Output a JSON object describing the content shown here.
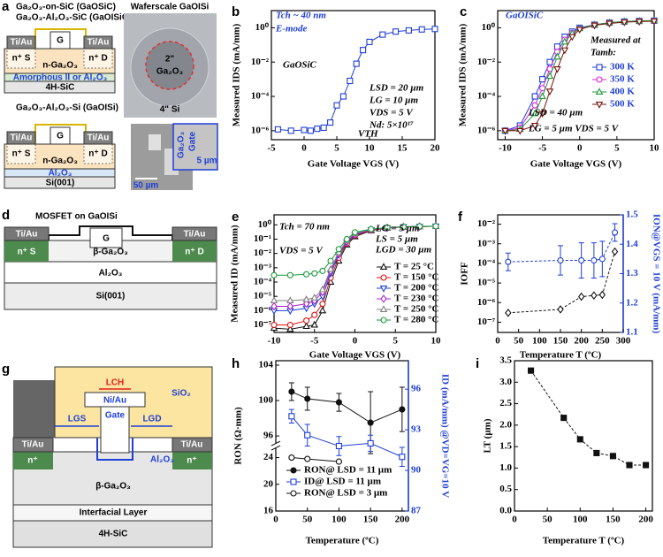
{
  "diagrams": {
    "a": {
      "label": "a",
      "gaosic": {
        "title": "Ga₂O₃-on-SiC (GaOSiC)",
        "title_2": "Ga₂O₃-Al₂O₃-SiC (GaOISiC)",
        "source_contact": "Ti/Au",
        "gate": "G",
        "drain_contact": "Ti/Au",
        "source_region": "n⁺ S",
        "channel": "n-Ga₂O₃",
        "drain_region": "n⁺ D",
        "interlayer": "Amorphous II or Al₂O₃",
        "substrate": "4H-SiC"
      },
      "gaoisi": {
        "title": "Ga₂O₃-Al₂O₃-Si (GaOISi)",
        "source_contact": "Ti/Au",
        "gate": "G",
        "drain_contact": "Ti/Au",
        "source_region": "n⁺ S",
        "channel": "n-Ga₂O₃",
        "drain_region": "n⁺ D",
        "interlayer": "Al₂O₃",
        "substrate": "Si(001)"
      },
      "wafer": {
        "title": "Waferscale GaOISi",
        "inner_size": "2\"",
        "film": "Ga₂O₃",
        "wafer_size": "4\" Si"
      },
      "sem": {
        "scale_large": "50 µm",
        "scale_small": "5 µm",
        "film": "Ga₂O₃",
        "gate": "Gate"
      }
    },
    "d": {
      "label": "d",
      "title": "MOSFET on GaOISi",
      "source_contact": "Ti/Au",
      "gate": "G",
      "drain_contact": "Ti/Au",
      "source_region": "n⁺ S",
      "drain_region": "n⁺ D",
      "channel": "β-Ga₂O₃",
      "insulator": "Al₂O₃",
      "substrate": "Si(001)"
    },
    "g": {
      "label": "g",
      "passivation": "SiO₂",
      "channel_length": "LCH",
      "gate_metal": "Ni/Au",
      "gate": "Gate",
      "gate_source": "LGS",
      "gate_drain": "LGD",
      "source_contact": "Ti/Au",
      "drain_contact": "Ti/Au",
      "source_region": "n⁺",
      "drain_region": "n⁺",
      "recess_oxide": "Al₂O₃",
      "channel": "β-Ga₂O₃",
      "interfacial": "Interfacial Layer",
      "substrate": "4H-SiC"
    }
  },
  "chart_data": [
    {
      "panel_label": "b",
      "type": "line",
      "log_y": true,
      "line_style": "solid",
      "x_label": "Gate Voltage VGS (V)",
      "y_label": "Measured IDS (mA/mm)",
      "xlim": [
        -5,
        20
      ],
      "xticks": [
        -5,
        0,
        5,
        10,
        15,
        20
      ],
      "ylim": [
        3e-07,
        10
      ],
      "yticks": [
        {
          "value": 1,
          "label": "10⁰"
        },
        {
          "value": 0.01,
          "label": "10⁻²"
        },
        {
          "value": 0.0001,
          "label": "10⁻⁴"
        },
        {
          "value": 1e-06,
          "label": "10⁻⁶"
        }
      ],
      "x": [
        -4,
        -2,
        0,
        1,
        2,
        3,
        4,
        5,
        6,
        7,
        8,
        9,
        10,
        12,
        14,
        16,
        18,
        20
      ],
      "series": [
        {
          "color": "#1f3fd8",
          "marker": "square",
          "filled": false,
          "values": [
            1.2e-06,
            1e-06,
            1.1e-06,
            1e-06,
            1.3e-06,
            1.5e-06,
            3e-06,
            3e-05,
            0.0001,
            0.0008,
            0.008,
            0.05,
            0.15,
            0.4,
            0.6,
            0.7,
            0.8,
            0.85
          ]
        }
      ],
      "annotations": [
        "Tch ~ 40 nm",
        "E-mode",
        "GaOSiC",
        "LSD = 20 µm",
        "LG = 10 µm",
        "VDS = 5 V",
        "Nd: 5×10¹⁷",
        "VTH"
      ]
    },
    {
      "panel_label": "c",
      "type": "line",
      "log_y": true,
      "line_style": "solid",
      "x_label": "Gate Voltage VGS (V)",
      "y_label": "Measured IDS (mA/mm)",
      "xlim": [
        -11,
        10
      ],
      "xticks": [
        -10,
        -5,
        0,
        5,
        10
      ],
      "ylim": [
        3e-07,
        10
      ],
      "yticks": [
        {
          "value": 1,
          "label": "10⁰"
        },
        {
          "value": 0.01,
          "label": "10⁻²"
        },
        {
          "value": 0.0001,
          "label": "10⁻⁴"
        },
        {
          "value": 1e-06,
          "label": "10⁻⁶"
        }
      ],
      "x": [
        -10,
        -8,
        -6,
        -5,
        -4,
        -3,
        -2,
        -1,
        0,
        2,
        4,
        6,
        8,
        10
      ],
      "series": [
        {
          "name": "300 K",
          "color": "#1f3fd8",
          "marker": "square",
          "filled": false,
          "values": [
            1e-06,
            2e-06,
            0.0001,
            0.001,
            0.01,
            0.08,
            0.3,
            0.6,
            1,
            1.5,
            2,
            2.3,
            2.5,
            2.6
          ]
        },
        {
          "name": "350 K",
          "color": "#e020e0",
          "marker": "circle",
          "filled": false,
          "values": [
            1e-06,
            1.5e-06,
            3e-05,
            0.0003,
            0.004,
            0.04,
            0.2,
            0.5,
            0.9,
            1.5,
            2,
            2.3,
            2.5,
            2.6
          ]
        },
        {
          "name": "400 K",
          "color": "#1a9a3a",
          "marker": "triangle",
          "filled": false,
          "values": [
            1e-06,
            1.2e-06,
            1e-05,
            0.0001,
            0.0015,
            0.02,
            0.15,
            0.45,
            0.9,
            1.5,
            2,
            2.3,
            2.5,
            2.6
          ]
        },
        {
          "name": "500 K",
          "color": "#7a1010",
          "marker": "triangle-down",
          "filled": false,
          "values": [
            1e-06,
            1e-06,
            2e-06,
            1e-05,
            0.0002,
            0.004,
            0.05,
            0.3,
            0.8,
            1.4,
            1.8,
            2.1,
            2.3,
            2.4
          ]
        }
      ],
      "annotations": [
        "GaOISiC",
        "Measured at",
        "Tamb:",
        "LSD = 40 µm",
        "LG = 5 µm  VDS = 5 V"
      ]
    },
    {
      "panel_label": "e",
      "type": "line",
      "log_y": true,
      "line_style": "solid",
      "x_label": "Gate Voltage VGS (V)",
      "y_label": "Measured ID (mA/mm)",
      "xlim": [
        -10,
        10
      ],
      "xticks": [
        -10,
        -5,
        0,
        5,
        10
      ],
      "ylim": [
        3e-08,
        5
      ],
      "yticks": [
        {
          "value": 1,
          "label": "10⁰"
        },
        {
          "value": 0.1,
          "label": "10⁻¹"
        },
        {
          "value": 0.01,
          "label": "10⁻²"
        },
        {
          "value": 0.001,
          "label": "10⁻³"
        },
        {
          "value": 0.0001,
          "label": "10⁻⁴"
        },
        {
          "value": 1e-05,
          "label": "10⁻⁵"
        },
        {
          "value": 1e-06,
          "label": "10⁻⁶"
        },
        {
          "value": 1e-07,
          "label": "10⁻⁷"
        }
      ],
      "x": [
        -10,
        -8,
        -6,
        -5,
        -4,
        -3,
        -2,
        -1,
        0,
        2,
        4,
        6,
        8,
        10
      ],
      "series": [
        {
          "name": "T = 25 °C",
          "color": "#111111",
          "marker": "triangle",
          "filled": false,
          "values": [
            6e-08,
            5e-08,
            8e-08,
            1e-07,
            1e-06,
            0.0001,
            0.003,
            0.04,
            0.15,
            0.4,
            0.6,
            0.7,
            0.75,
            0.8
          ]
        },
        {
          "name": "T = 150 °C",
          "color": "#e01010",
          "marker": "circle",
          "filled": false,
          "values": [
            1e-07,
            1e-07,
            2e-07,
            5e-07,
            3e-06,
            0.0002,
            0.005,
            0.05,
            0.18,
            0.42,
            0.6,
            0.7,
            0.75,
            0.8
          ]
        },
        {
          "name": "T = 200 °C",
          "color": "#1f3fd8",
          "marker": "triangle-down",
          "filled": false,
          "values": [
            1e-06,
            1e-06,
            1.5e-06,
            3e-06,
            1e-05,
            0.0004,
            0.008,
            0.06,
            0.2,
            0.45,
            0.62,
            0.72,
            0.77,
            0.8
          ]
        },
        {
          "name": "T = 230 °C",
          "color": "#b020d0",
          "marker": "diamond",
          "filled": false,
          "values": [
            2e-06,
            2e-06,
            3e-06,
            5e-06,
            2e-05,
            0.0006,
            0.01,
            0.07,
            0.22,
            0.45,
            0.62,
            0.72,
            0.77,
            0.8
          ]
        },
        {
          "name": "T = 250 °C",
          "color": "#808080",
          "marker": "triangle",
          "filled": false,
          "values": [
            5e-06,
            5e-06,
            6e-06,
            8e-06,
            3e-05,
            0.0008,
            0.012,
            0.08,
            0.25,
            0.48,
            0.63,
            0.72,
            0.77,
            0.8
          ]
        },
        {
          "name": "T = 280 °C",
          "color": "#1a9a3a",
          "marker": "circle",
          "filled": false,
          "values": [
            0.0003,
            0.0003,
            0.00035,
            0.0004,
            0.0006,
            0.003,
            0.02,
            0.1,
            0.3,
            0.5,
            0.65,
            0.73,
            0.78,
            0.8
          ]
        }
      ],
      "annotations": [
        "Tch = 70 nm",
        "VDS = 5 V",
        "LG = 5 µm",
        "LS = 5 µm",
        "LGD = 30 µm"
      ]
    },
    {
      "panel_label": "f",
      "type": "line",
      "log_y": true,
      "line_style": "dashed",
      "x_label": "Temperature T (ºC)",
      "y_label": "IOFF",
      "y2_label": "ION@VGS = 10 V (mA/mm)",
      "y2_color": "#1f3fd8",
      "xlim": [
        0,
        300
      ],
      "xticks": [
        0,
        50,
        100,
        150,
        200,
        250,
        300
      ],
      "ylim": [
        3e-08,
        0.03
      ],
      "yticks": [
        {
          "value": 0.01,
          "label": "10⁻²"
        },
        {
          "value": 0.001,
          "label": "10⁻³"
        },
        {
          "value": 0.0001,
          "label": "10⁻⁴"
        },
        {
          "value": 1e-05,
          "label": "10⁻⁵"
        },
        {
          "value": 1e-06,
          "label": "10⁻⁶"
        },
        {
          "value": 1e-07,
          "label": "10⁻⁷"
        }
      ],
      "y2lim": [
        1.1,
        1.5
      ],
      "y2ticks": [
        1.1,
        1.2,
        1.3,
        1.4,
        1.5
      ],
      "x": [
        25,
        150,
        200,
        230,
        250,
        280
      ],
      "series": [
        {
          "color": "#111111",
          "marker": "diamond",
          "filled": false,
          "values": [
            3e-07,
            4.5e-07,
            2e-06,
            2.3e-06,
            2.5e-06,
            0.0004
          ]
        },
        {
          "color": "#1f3fd8",
          "marker": "circle",
          "filled": false,
          "axis": "y2",
          "values": [
            1.34,
            1.345,
            1.345,
            1.345,
            1.35,
            1.44
          ],
          "errors": [
            0.03,
            0.05,
            0.06,
            0.06,
            0.06,
            0.03
          ]
        }
      ]
    },
    {
      "panel_label": "h",
      "type": "line",
      "line_style": "solid",
      "x_label": "Temperature (ºC)",
      "y_label": "RON (Ω·mm)",
      "y2_label": "ID (mA/mm) @VD=VG=10 V",
      "y2_color": "#1f3fd8",
      "xlim": [
        0,
        210
      ],
      "xticks": [
        0,
        50,
        100,
        150,
        200
      ],
      "ylim": [
        16,
        104.5
      ],
      "ybreak": [
        25,
        95.5
      ],
      "yticks": [
        16,
        20,
        24,
        96,
        100,
        104
      ],
      "y2lim": [
        87,
        98.1
      ],
      "y2ticks": [
        87,
        90,
        93,
        96
      ],
      "series": [
        {
          "name": "RON@ LSD = 11 µm",
          "color": "#111111",
          "marker": "circle",
          "filled": true,
          "x": [
            25,
            50,
            100,
            150,
            200
          ],
          "values": [
            101,
            100.2,
            99.8,
            97.5,
            99
          ],
          "errors": [
            1,
            1.3,
            1,
            3.5,
            2.5
          ]
        },
        {
          "name": "ID@ LSD = 11 µm",
          "color": "#1f3fd8",
          "marker": "square",
          "filled": false,
          "axis": "y2",
          "x": [
            25,
            50,
            100,
            150,
            200
          ],
          "values": [
            94,
            92.6,
            91.8,
            92,
            91
          ],
          "errors": [
            0.5,
            0.8,
            0.7,
            0.6,
            0.7
          ]
        },
        {
          "name": "RON@ LSD = 3 µm",
          "color": "#111111",
          "marker": "circle",
          "filled": false,
          "x": [
            25,
            50,
            100
          ],
          "values": [
            24,
            23.8,
            23.4
          ]
        }
      ]
    },
    {
      "panel_label": "i",
      "type": "line",
      "line_style": "dashed",
      "x_label": "Temperature T (ºC)",
      "y_label": "LT (µm)",
      "xlim": [
        0,
        210
      ],
      "xticks": [
        0,
        50,
        100,
        150,
        200
      ],
      "ylim": [
        0,
        3.5
      ],
      "yticks": [
        {
          "value": 0,
          "label": "0.0"
        },
        0.5,
        {
          "value": 1,
          "label": "1.0"
        },
        1.5,
        {
          "value": 2,
          "label": "2.0"
        },
        2.5,
        {
          "value": 3,
          "label": "3.0"
        },
        3.5
      ],
      "x": [
        25,
        75,
        100,
        125,
        150,
        175,
        200
      ],
      "series": [
        {
          "color": "#111111",
          "marker": "square",
          "filled": true,
          "values": [
            3.27,
            2.17,
            1.67,
            1.35,
            1.28,
            1.07,
            1.07
          ]
        }
      ]
    }
  ]
}
